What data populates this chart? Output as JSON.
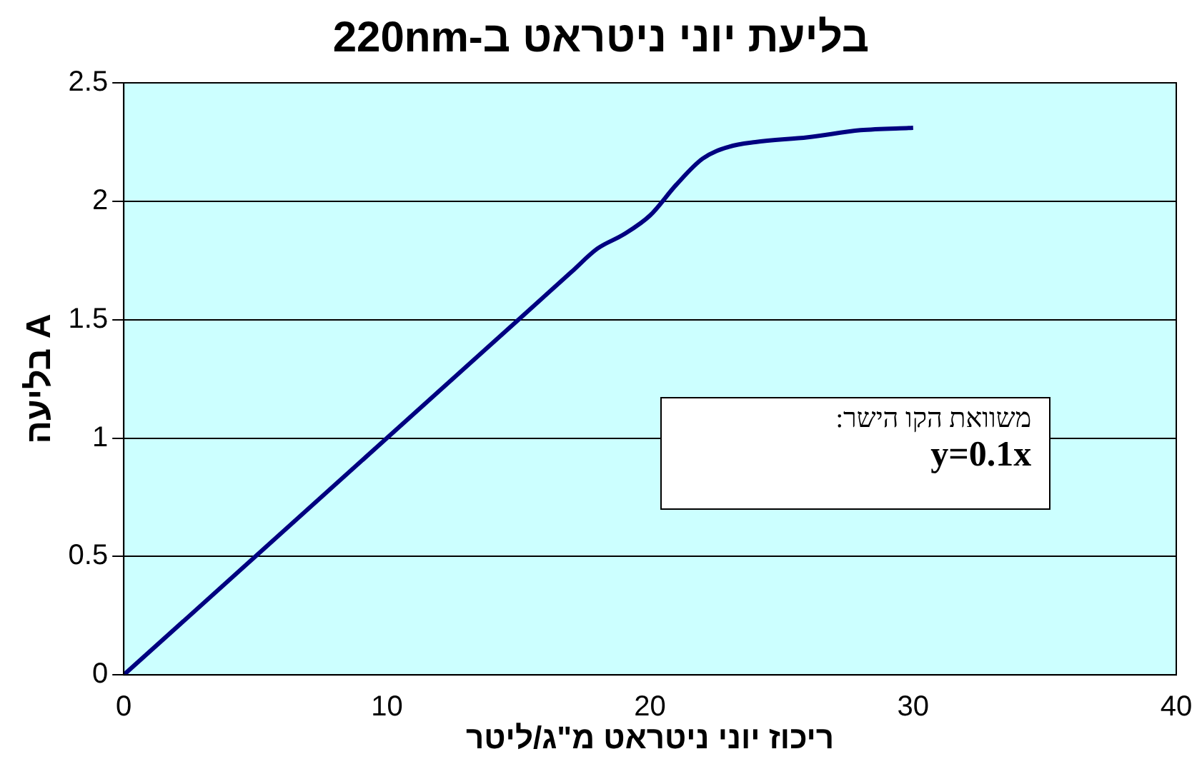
{
  "chart_data": {
    "type": "line",
    "title": "בליעת יוני ניטראט ב-220nm",
    "xlabel": "ריכוז יוני ניטראט מ\"ג/ליטר",
    "ylabel": "בליעה A",
    "x": [
      0,
      10,
      15,
      17,
      18,
      19,
      20,
      21,
      22,
      23,
      24,
      26,
      28,
      30
    ],
    "series": [
      {
        "color": "#000080",
        "values": [
          0,
          1,
          1.5,
          1.7,
          1.8,
          1.86,
          1.94,
          2.07,
          2.18,
          2.23,
          2.25,
          2.27,
          2.3,
          2.31
        ]
      }
    ],
    "xlim": [
      0,
      40
    ],
    "xticks": [
      0,
      10,
      20,
      30,
      40
    ],
    "ylim": [
      0,
      2.5
    ],
    "yticks": [
      0,
      0.5,
      1,
      1.5,
      2,
      2.5
    ],
    "grid": "y",
    "legend": false,
    "marker": "none",
    "line_style": "solid",
    "annotations": [
      "משוואת הקו הישר:",
      "y=0.1x"
    ]
  }
}
